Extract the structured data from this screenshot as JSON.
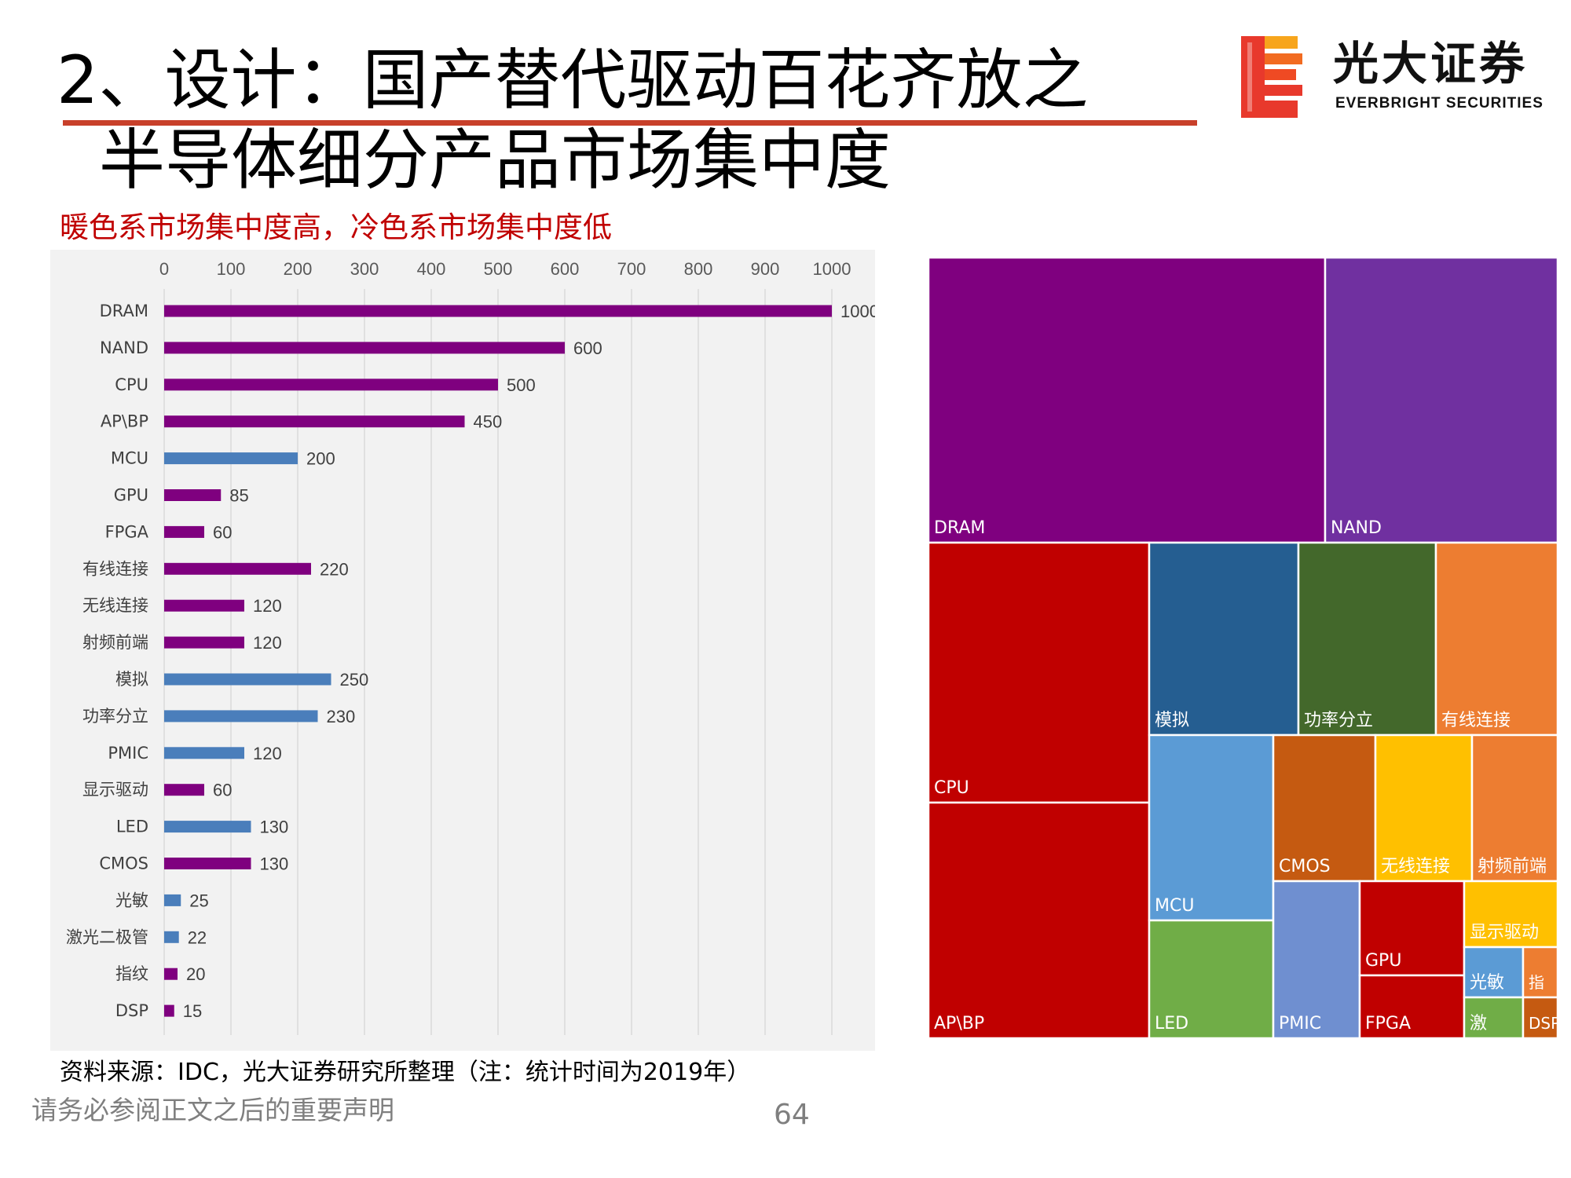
{
  "title": {
    "line1": "2、设计：国产替代驱动百花齐放之",
    "line2": "半导体细分产品市场集中度"
  },
  "logo": {
    "name_cn": "光大证券",
    "name_en": "EVERBRIGHT SECURITIES"
  },
  "subtitle": "暖色系市场集中度高，冷色系市场集中度低",
  "chart_data": [
    {
      "type": "bar",
      "orientation": "horizontal",
      "categories": [
        "DRAM",
        "NAND",
        "CPU",
        "AP\\BP",
        "MCU",
        "GPU",
        "FPGA",
        "有线连接",
        "无线连接",
        "射频前端",
        "模拟",
        "功率分立",
        "PMIC",
        "显示驱动",
        "LED",
        "CMOS",
        "光敏",
        "激光二极管",
        "指纹",
        "DSP"
      ],
      "values": [
        1000,
        600,
        500,
        450,
        200,
        85,
        60,
        220,
        120,
        120,
        250,
        230,
        120,
        60,
        130,
        130,
        25,
        22,
        20,
        15
      ],
      "bar_colors": [
        "#7f007f",
        "#7f007f",
        "#7f007f",
        "#7f007f",
        "#4a7ebb",
        "#7f007f",
        "#7f007f",
        "#7f007f",
        "#7f007f",
        "#7f007f",
        "#4a7ebb",
        "#4a7ebb",
        "#4a7ebb",
        "#7f007f",
        "#4a7ebb",
        "#7f007f",
        "#4a7ebb",
        "#4a7ebb",
        "#7f007f",
        "#7f007f"
      ],
      "xlim": [
        0,
        1000
      ],
      "xticks": [
        0,
        100,
        200,
        300,
        400,
        500,
        600,
        700,
        800,
        900,
        1000
      ],
      "axis_position": "top",
      "grid": true,
      "data_labels": true
    },
    {
      "type": "treemap",
      "items": [
        {
          "label": "DRAM",
          "value": 1000,
          "color": "#7f007f",
          "text_color": "#ffffff"
        },
        {
          "label": "NAND",
          "value": 600,
          "color": "#7030a0",
          "text_color": "#ffffff"
        },
        {
          "label": "CPU",
          "value": 500,
          "color": "#c00000",
          "text_color": "#ffffff"
        },
        {
          "label": "AP\\BP",
          "value": 450,
          "color": "#c00000",
          "text_color": "#ffffff"
        },
        {
          "label": "模拟",
          "value": 250,
          "color": "#255e91",
          "text_color": "#ffffff"
        },
        {
          "label": "功率分立",
          "value": 230,
          "color": "#43682b",
          "text_color": "#ffffff"
        },
        {
          "label": "有线连接",
          "value": 220,
          "color": "#ed7d31",
          "text_color": "#ffffff"
        },
        {
          "label": "MCU",
          "value": 200,
          "color": "#5b9bd5",
          "text_color": "#ffffff"
        },
        {
          "label": "LED",
          "value": 130,
          "color": "#70ad47",
          "text_color": "#ffffff"
        },
        {
          "label": "CMOS",
          "value": 130,
          "color": "#c55a11",
          "text_color": "#ffffff"
        },
        {
          "label": "无线连接",
          "value": 120,
          "color": "#ffc000",
          "text_color": "#ffffff"
        },
        {
          "label": "射频前端",
          "value": 120,
          "color": "#ed7d31",
          "text_color": "#ffffff"
        },
        {
          "label": "PMIC",
          "value": 120,
          "color": "#6f8fd0",
          "text_color": "#ffffff"
        },
        {
          "label": "GPU",
          "value": 85,
          "color": "#c00000",
          "text_color": "#ffffff"
        },
        {
          "label": "FPGA",
          "value": 60,
          "color": "#c00000",
          "text_color": "#ffffff"
        },
        {
          "label": "显示驱动",
          "value": 60,
          "color": "#ffc000",
          "text_color": "#ffffff"
        },
        {
          "label": "光敏",
          "value": 25,
          "color": "#5b9bd5",
          "text_color": "#ffffff"
        },
        {
          "label": "指",
          "value": 20,
          "color": "#ed7d31",
          "text_color": "#ffffff"
        },
        {
          "label": "激",
          "value": 22,
          "color": "#70ad47",
          "text_color": "#ffffff"
        },
        {
          "label": "DSP",
          "value": 15,
          "color": "#c55a11",
          "text_color": "#ffffff"
        }
      ]
    }
  ],
  "footer": {
    "source": "资料来源：IDC，光大证券研究所整理（注：统计时间为2019年）",
    "disclaimer": "请务必参阅正文之后的重要声明",
    "page_number": "64"
  }
}
